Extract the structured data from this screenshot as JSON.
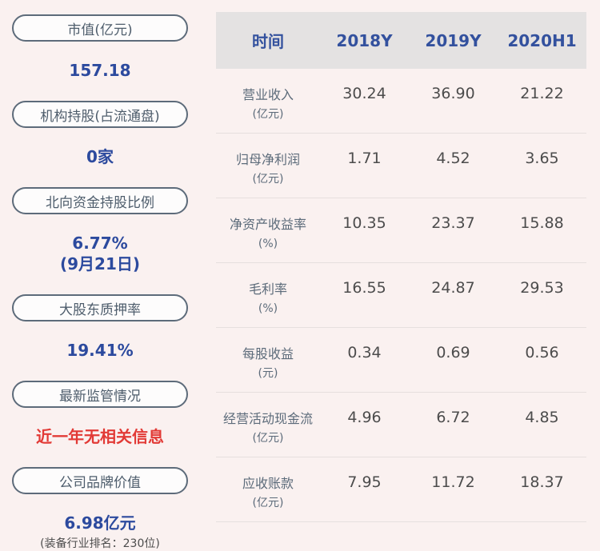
{
  "colors": {
    "bg": "#faf1f0",
    "pill-border": "#5d6b7a",
    "pill-text": "#4e5d6c",
    "pill-bg": "#fdfcfc",
    "value-blue": "#2c4a9e",
    "alert-red": "#e23a36",
    "note-grey": "#4d4d4d",
    "header-bg": "#e4e2e2",
    "header-text": "#33519e",
    "label-grey": "#5c6b7a",
    "cell-text": "#4c4c4c",
    "divider": "#e6dfde"
  },
  "sidebar": {
    "items": [
      {
        "label": "市值(亿元)",
        "value": "157.18"
      },
      {
        "label": "机构持股(占流通盘)",
        "value": "0家"
      },
      {
        "label": "北向资金持股比例",
        "value": "6.77%",
        "value_line2": "(9月21日)"
      },
      {
        "label": "大股东质押率",
        "value": "19.41%"
      },
      {
        "label": "最新监管情况",
        "value": "近一年无相关信息"
      },
      {
        "label": "公司品牌价值",
        "value": "6.98亿元",
        "note": "(装备行业排名：230位)"
      }
    ]
  },
  "table": {
    "type": "table",
    "columns": [
      "时间",
      "2018Y",
      "2019Y",
      "2020H1"
    ],
    "rows": [
      {
        "label": "营业收入",
        "unit": "(亿元)",
        "values": [
          "30.24",
          "36.90",
          "21.22"
        ]
      },
      {
        "label": "归母净利润",
        "unit": "(亿元)",
        "values": [
          "1.71",
          "4.52",
          "3.65"
        ]
      },
      {
        "label": "净资产收益率",
        "unit": "(%)",
        "values": [
          "10.35",
          "23.37",
          "15.88"
        ]
      },
      {
        "label": "毛利率",
        "unit": "(%)",
        "values": [
          "16.55",
          "24.87",
          "29.53"
        ]
      },
      {
        "label": "每股收益",
        "unit": "(元)",
        "values": [
          "0.34",
          "0.69",
          "0.56"
        ]
      },
      {
        "label": "经营活动现金流",
        "unit": "(亿元)",
        "values": [
          "4.96",
          "6.72",
          "4.85"
        ]
      },
      {
        "label": "应收账款",
        "unit": "(亿元)",
        "values": [
          "7.95",
          "11.72",
          "18.37"
        ]
      }
    ]
  }
}
